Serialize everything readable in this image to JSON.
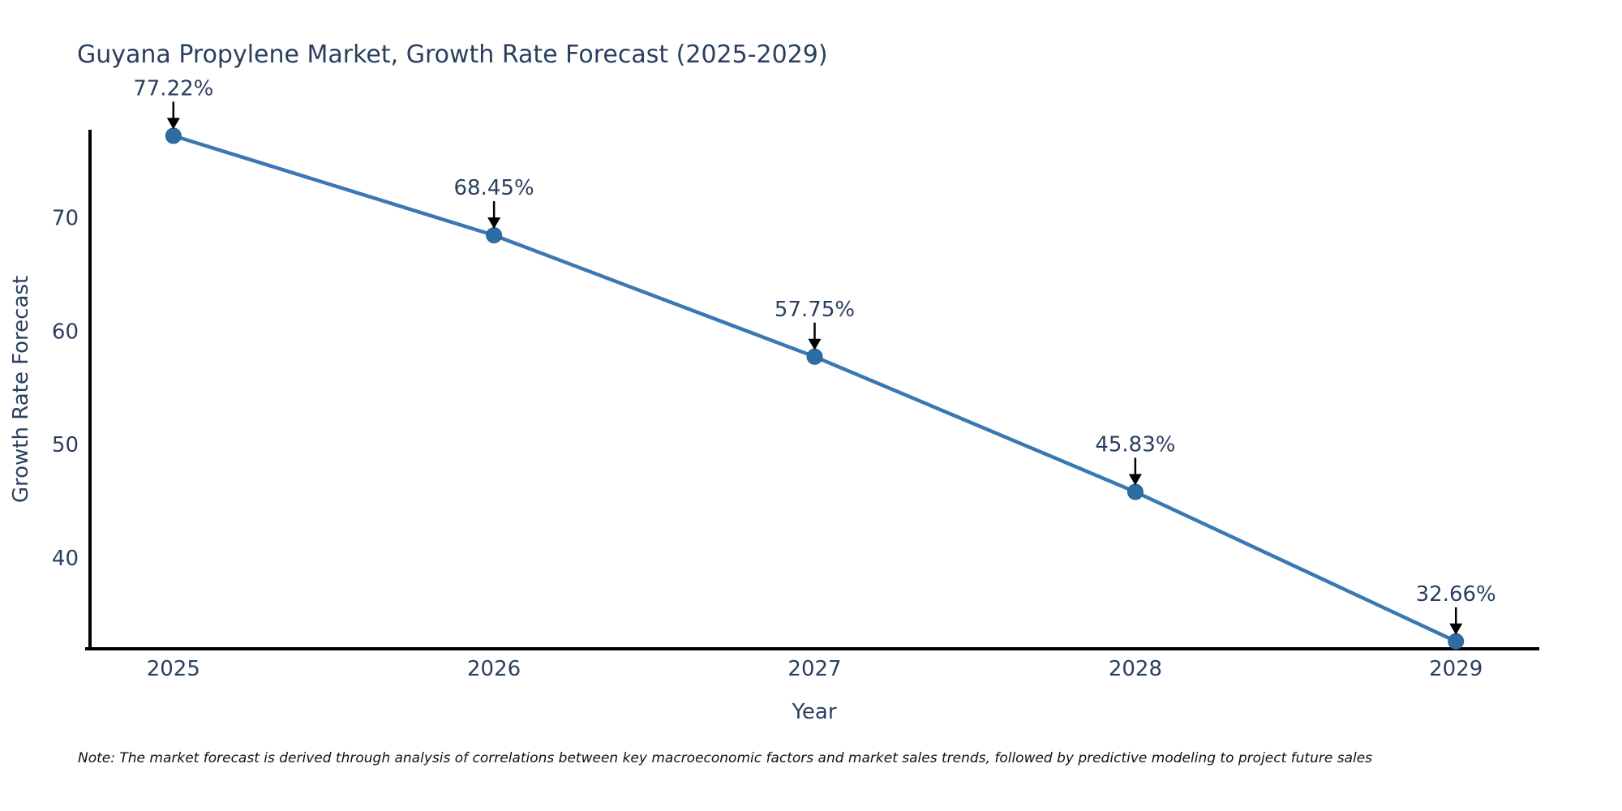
{
  "page": {
    "background_color": "#ffffff"
  },
  "chart_data": {
    "type": "line",
    "title": "Guyana Propylene Market, Growth Rate Forecast (2025-2029)",
    "xlabel": "Year",
    "ylabel": "Growth Rate Forecast",
    "x": [
      2025,
      2026,
      2027,
      2028,
      2029
    ],
    "values": [
      77.22,
      68.45,
      57.75,
      45.83,
      32.66
    ],
    "point_labels": [
      "77.22%",
      "68.45%",
      "57.75%",
      "45.83%",
      "32.66%"
    ],
    "x_tick_labels": [
      "2025",
      "2026",
      "2027",
      "2028",
      "2029"
    ],
    "x_tick_values": [
      2025,
      2026,
      2027,
      2028,
      2029
    ],
    "y_tick_values": [
      40,
      50,
      60,
      70
    ],
    "xlim": [
      2024.74,
      2029.26
    ],
    "ylim": [
      32.0,
      77.75
    ],
    "grid": false,
    "legend_position": "none",
    "line_color": "#3a78b3",
    "marker_color": "#2e6da4",
    "marker_edge_color": "#2a6194",
    "axis_line_color": "#000000",
    "text_color": "#2a3f5f",
    "annotation_text_color": "#2a3f5f",
    "annotation_arrow_color": "#000000"
  },
  "footnote": {
    "text": "Note: The market forecast is derived through analysis of correlations between key macroeconomic factors and market sales trends, followed by predictive modeling to project future sales"
  }
}
